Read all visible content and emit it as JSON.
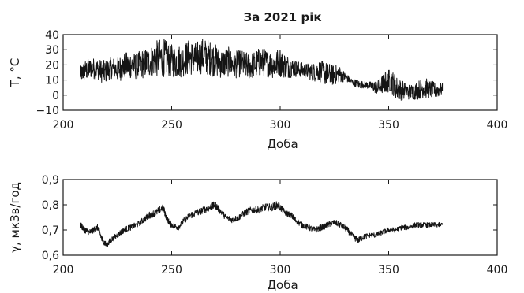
{
  "chart_data": [
    {
      "type": "line",
      "title": "За 2021 рік",
      "xlabel": "Доба",
      "ylabel": "T, °C",
      "xlim": [
        200,
        400
      ],
      "ylim": [
        -10,
        40
      ],
      "xticks": [
        200,
        250,
        300,
        350,
        400
      ],
      "yticks": [
        -10,
        0,
        10,
        20,
        30,
        40
      ],
      "xtick_labels": [
        "200",
        "250",
        "300",
        "350",
        "400"
      ],
      "ytick_labels": [
        "−10",
        "0",
        "10",
        "20",
        "30",
        "40"
      ],
      "grid": false,
      "color": "#141414",
      "series": [
        {
          "x": [
            208,
            210,
            213,
            216,
            219,
            222,
            225,
            228,
            231,
            234,
            237,
            240,
            243,
            246,
            249,
            252,
            255,
            258,
            261,
            264,
            267,
            270,
            273,
            276,
            279,
            282,
            285,
            288,
            291,
            294,
            297,
            300,
            303,
            306,
            309,
            312,
            315,
            318,
            321,
            324,
            327,
            330,
            333,
            336,
            339,
            342,
            345,
            348,
            351,
            354,
            357,
            360,
            363,
            366,
            369,
            372,
            375
          ],
          "y": [
            14,
            16,
            18,
            17,
            15,
            18,
            17,
            19,
            20,
            19,
            21,
            22,
            24,
            25,
            23,
            22,
            23,
            25,
            24,
            26,
            25,
            23,
            21,
            22,
            20,
            21,
            19,
            20,
            22,
            21,
            20,
            22,
            19,
            18,
            17,
            16,
            15,
            16,
            14,
            13,
            14,
            12,
            9,
            7,
            7,
            6,
            5,
            8,
            10,
            4,
            3,
            2,
            3,
            5,
            4,
            3,
            4
          ],
          "spread": [
            5,
            7,
            7,
            7,
            8,
            7,
            8,
            9,
            9,
            9,
            10,
            10,
            12,
            13,
            11,
            11,
            11,
            12,
            11,
            12,
            12,
            11,
            10,
            10,
            9,
            9,
            9,
            9,
            10,
            9,
            9,
            10,
            8,
            6,
            5,
            5,
            6,
            7,
            8,
            7,
            6,
            3,
            2,
            3,
            2,
            3,
            5,
            7,
            8,
            8,
            6,
            5,
            6,
            7,
            6,
            5,
            4
          ]
        }
      ]
    },
    {
      "type": "line",
      "title": "",
      "xlabel": "Доба",
      "ylabel": "γ, мкЗв/год",
      "xlim": [
        200,
        400
      ],
      "ylim": [
        0.6,
        0.9
      ],
      "xticks": [
        200,
        250,
        300,
        350,
        400
      ],
      "yticks": [
        0.6,
        0.7,
        0.8,
        0.9
      ],
      "xtick_labels": [
        "200",
        "250",
        "300",
        "350",
        "400"
      ],
      "ytick_labels": [
        "0,6",
        "0,7",
        "0,8",
        "0,9"
      ],
      "grid": false,
      "color": "#141414",
      "series": [
        {
          "x": [
            208,
            210,
            212,
            214,
            216,
            218,
            220,
            222,
            225,
            228,
            231,
            234,
            237,
            240,
            243,
            246,
            248,
            250,
            253,
            256,
            259,
            262,
            265,
            268,
            270,
            272,
            275,
            278,
            281,
            284,
            287,
            290,
            293,
            296,
            299,
            302,
            305,
            307,
            310,
            313,
            316,
            319,
            322,
            325,
            328,
            331,
            334,
            336,
            338,
            341,
            344,
            347,
            350,
            353,
            356,
            359,
            362,
            365,
            368,
            371,
            375
          ],
          "y": [
            0.72,
            0.7,
            0.69,
            0.7,
            0.71,
            0.66,
            0.64,
            0.66,
            0.68,
            0.7,
            0.71,
            0.72,
            0.74,
            0.76,
            0.77,
            0.79,
            0.74,
            0.72,
            0.71,
            0.74,
            0.76,
            0.77,
            0.78,
            0.79,
            0.8,
            0.78,
            0.75,
            0.74,
            0.75,
            0.77,
            0.78,
            0.78,
            0.79,
            0.79,
            0.8,
            0.77,
            0.76,
            0.74,
            0.72,
            0.71,
            0.7,
            0.71,
            0.72,
            0.73,
            0.72,
            0.7,
            0.67,
            0.66,
            0.67,
            0.68,
            0.68,
            0.69,
            0.7,
            0.7,
            0.71,
            0.71,
            0.72,
            0.72,
            0.72,
            0.72,
            0.72
          ],
          "spread": [
            0.012,
            0.012,
            0.012,
            0.012,
            0.012,
            0.015,
            0.012,
            0.012,
            0.012,
            0.012,
            0.012,
            0.012,
            0.012,
            0.014,
            0.014,
            0.015,
            0.012,
            0.012,
            0.012,
            0.012,
            0.014,
            0.014,
            0.014,
            0.015,
            0.015,
            0.013,
            0.012,
            0.012,
            0.012,
            0.013,
            0.014,
            0.014,
            0.015,
            0.015,
            0.016,
            0.013,
            0.012,
            0.012,
            0.012,
            0.012,
            0.012,
            0.012,
            0.012,
            0.012,
            0.012,
            0.012,
            0.012,
            0.012,
            0.012,
            0.01,
            0.01,
            0.01,
            0.01,
            0.01,
            0.01,
            0.01,
            0.01,
            0.01,
            0.01,
            0.01,
            0.01
          ]
        }
      ]
    }
  ]
}
